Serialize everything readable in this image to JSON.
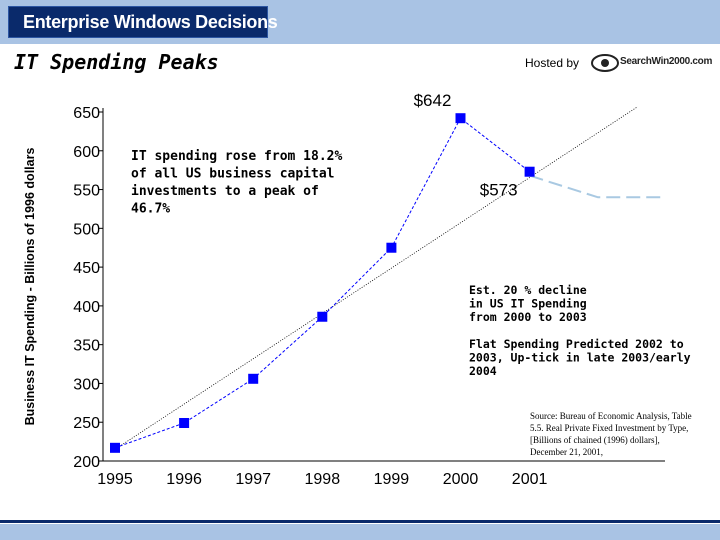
{
  "header": {
    "brand": "Enterprise Windows Decisions",
    "title": "IT Spending Peaks",
    "hosted_label": "Hosted by",
    "logo_text": "SearchWin2000.com"
  },
  "colors": {
    "band": "#a9c3e4",
    "brand_bg": "#0a2a6b",
    "series": "#0000ff",
    "projection": "#a9c9e2"
  },
  "chart_data": {
    "type": "line",
    "ylabel": "Business IT Spending - Billions of 1996 dollars",
    "xlabel": "",
    "ylim": [
      200,
      650
    ],
    "yticks": [
      200,
      250,
      300,
      350,
      400,
      450,
      500,
      550,
      600,
      650
    ],
    "categories": [
      "1995",
      "1996",
      "1997",
      "1998",
      "1999",
      "2000",
      "2001"
    ],
    "series": [
      {
        "values": [
          217,
          249,
          306,
          386,
          475,
          642,
          573
        ]
      }
    ],
    "trendline": {
      "x": [
        "1995",
        "2002"
      ],
      "y": [
        215,
        595
      ]
    },
    "projection": {
      "x": [
        2001,
        2002,
        2003
      ],
      "y": [
        568,
        540,
        540
      ]
    },
    "point_labels": [
      {
        "category": "2000",
        "text": "$642"
      },
      {
        "category": "2001",
        "text": "$573"
      }
    ],
    "annotations": [
      {
        "id": "rise",
        "lines": [
          "IT spending rose from 18.2%",
          "of all US business capital",
          "investments to a peak of",
          "46.7%"
        ]
      },
      {
        "id": "decline",
        "lines": [
          "Est. 20 % decline",
          "in US IT Spending",
          "from 2000 to 2003"
        ]
      },
      {
        "id": "flat",
        "lines": [
          "Flat Spending Predicted 2002 to",
          "2003, Up-tick in late 2003/early",
          "2004"
        ]
      },
      {
        "id": "source",
        "lines": [
          "Source: Bureau of Economic Analysis, Table",
          "5.5. Real Private Fixed Investment by Type,",
          "[Billions of chained (1996) dollars],",
          "December 21, 2001,"
        ]
      }
    ]
  }
}
